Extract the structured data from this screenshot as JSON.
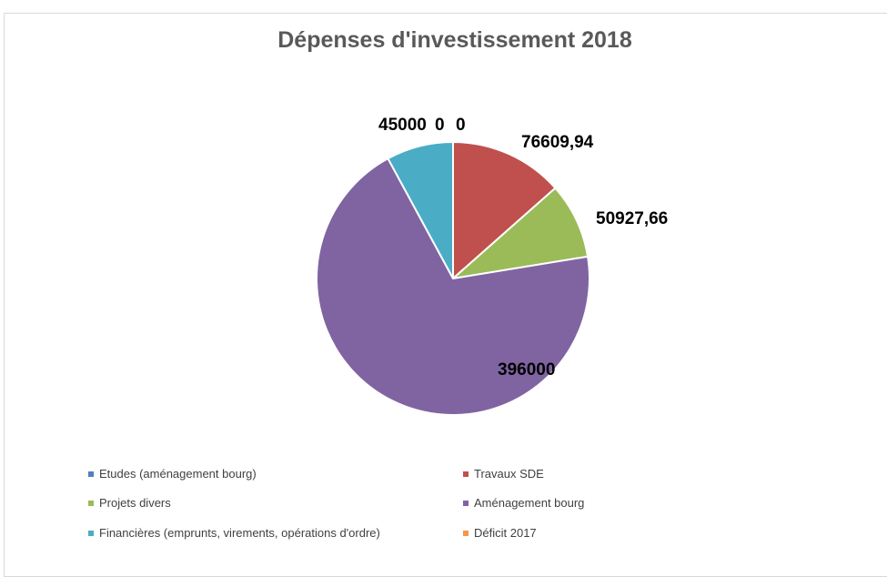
{
  "chart_data": {
    "type": "pie",
    "title": "Dépenses d'investissement 2018",
    "categories": [
      "Etudes (aménagement bourg)",
      "Travaux SDE",
      "Projets divers",
      "Aménagement bourg",
      "Financières (emprunts, virements, opérations d'ordre)",
      "Déficit 2017"
    ],
    "values": [
      0,
      76609.94,
      50927.66,
      396000,
      45000,
      0
    ],
    "data_labels": [
      "0",
      "76609,94",
      "50927,66",
      "396000",
      "45000",
      "0"
    ],
    "colors": [
      "#4f81bd",
      "#c0504d",
      "#9bbb59",
      "#8064a2",
      "#4bacc6",
      "#f79646"
    ],
    "legend_position": "bottom"
  }
}
